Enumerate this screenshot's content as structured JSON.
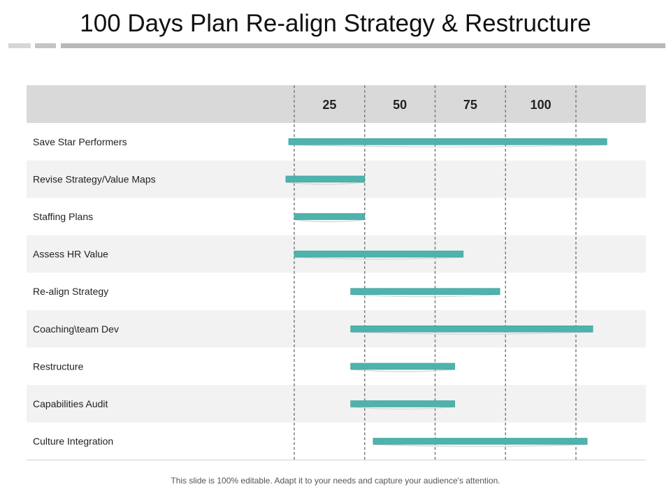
{
  "title": "100 Days Plan Re-align Strategy & Restructure",
  "footer": "This slide is 100% editable. Adapt it to your needs and capture your audience's attention.",
  "colors": {
    "bar": "#4db3ac",
    "bar_dark": "#3d9d97",
    "header_bg": "#d9d9d9",
    "row_alt": "#f2f2f2",
    "grid": "#808080"
  },
  "chart_data": {
    "type": "bar",
    "orientation": "horizontal-gantt",
    "x_ticks": [
      "25",
      "50",
      "75",
      "100"
    ],
    "xlim": [
      0,
      125
    ],
    "grid": true,
    "categories": [
      "Save Star Performers",
      "Revise Strategy/Value Maps",
      "Staffing Plans",
      "Assess HR Value",
      "Re-align Strategy",
      "Coaching\\team Dev",
      "Restructure",
      "Capabilities Audit",
      "Culture Integration"
    ],
    "ranges": [
      [
        -2,
        111
      ],
      [
        -3,
        25
      ],
      [
        0,
        25
      ],
      [
        0,
        60
      ],
      [
        20,
        73
      ],
      [
        20,
        106
      ],
      [
        20,
        57
      ],
      [
        20,
        57
      ],
      [
        28,
        104
      ]
    ]
  }
}
